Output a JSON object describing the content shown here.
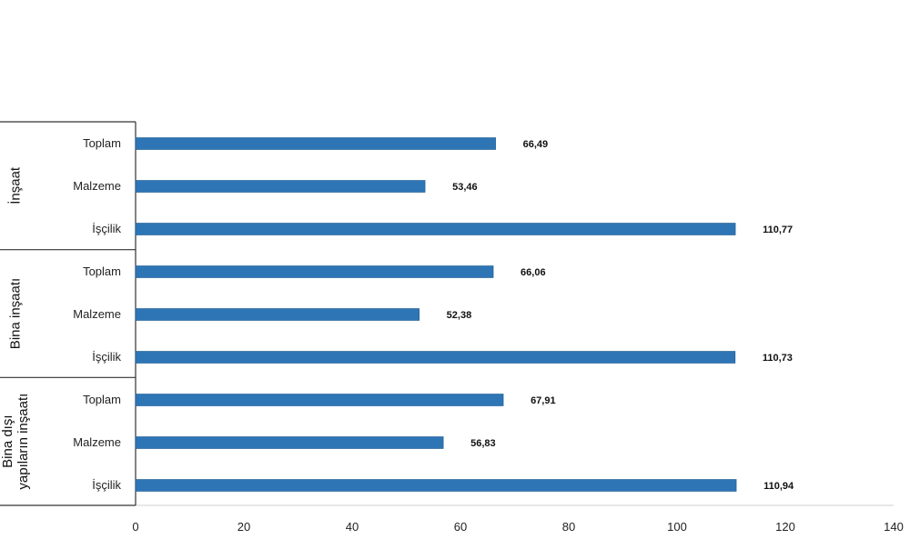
{
  "chart_data": {
    "type": "bar",
    "orientation": "horizontal",
    "title": "",
    "xlabel": "",
    "ylabel": "",
    "xlim": [
      0,
      140
    ],
    "xticks": [
      "0",
      "20",
      "40",
      "60",
      "80",
      "100",
      "120",
      "140"
    ],
    "grid": false,
    "bar_color": "#2e75b6",
    "groups": [
      {
        "label_lines": [
          "İnşaat"
        ],
        "categories": [
          "Toplam",
          "Malzeme",
          "İşçilik"
        ],
        "values": [
          66.49,
          53.46,
          110.77
        ],
        "value_labels": [
          "66,49",
          "53,46",
          "110,77"
        ]
      },
      {
        "label_lines": [
          "Bina inşaatı"
        ],
        "categories": [
          "Toplam",
          "Malzeme",
          "İşçilik"
        ],
        "values": [
          66.06,
          52.38,
          110.73
        ],
        "value_labels": [
          "66,06",
          "52,38",
          "110,73"
        ]
      },
      {
        "label_lines": [
          "Bina dışı",
          "yapıların inşaatı"
        ],
        "categories": [
          "Toplam",
          "Malzeme",
          "İşçilik"
        ],
        "values": [
          67.91,
          56.83,
          110.94
        ],
        "value_labels": [
          "67,91",
          "56,83",
          "110,94"
        ]
      }
    ]
  }
}
